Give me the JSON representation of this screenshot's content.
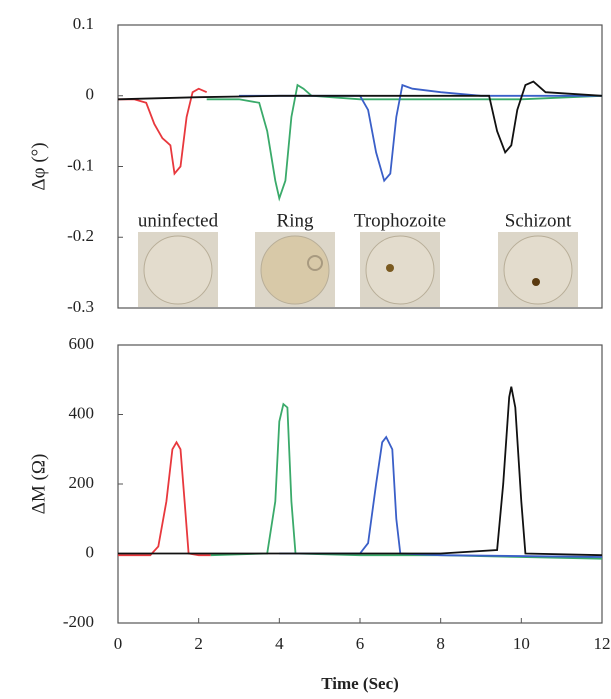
{
  "chart_data": [
    {
      "type": "line",
      "ylabel": "Δφ (°)",
      "xlim": [
        0,
        12
      ],
      "ylim": [
        -0.3,
        0.1
      ],
      "yticks": [
        0.1,
        0,
        -0.1,
        -0.2,
        -0.3
      ],
      "annotations": [
        "uninfected",
        "Ring",
        "Trophozoite",
        "Schizont"
      ],
      "series": [
        {
          "color": "#e8383d",
          "x": [
            0,
            0.4,
            0.7,
            0.9,
            1.1,
            1.2,
            1.3,
            1.4,
            1.55,
            1.7,
            1.85,
            2.0,
            2.2
          ],
          "values": [
            -0.005,
            -0.005,
            -0.01,
            -0.04,
            -0.06,
            -0.065,
            -0.07,
            -0.11,
            -0.1,
            -0.03,
            0.005,
            0.01,
            0.005
          ]
        },
        {
          "color": "#3aaa6a",
          "x": [
            2.2,
            3.0,
            3.5,
            3.7,
            3.9,
            4.0,
            4.15,
            4.3,
            4.45,
            4.6,
            4.8,
            6,
            8,
            10,
            12
          ],
          "values": [
            -0.005,
            -0.005,
            -0.01,
            -0.05,
            -0.12,
            -0.145,
            -0.12,
            -0.03,
            0.015,
            0.01,
            0,
            -0.005,
            -0.005,
            -0.005,
            0
          ]
        },
        {
          "color": "#3a5fc8",
          "x": [
            3,
            5,
            6,
            6.2,
            6.4,
            6.6,
            6.75,
            6.9,
            7.05,
            7.3,
            8,
            9,
            10,
            12
          ],
          "values": [
            0,
            0,
            0,
            -0.02,
            -0.08,
            -0.12,
            -0.11,
            -0.03,
            0.015,
            0.01,
            0.005,
            0,
            0,
            0
          ]
        },
        {
          "color": "#111111",
          "x": [
            0,
            2,
            4,
            6,
            8,
            9.2,
            9.4,
            9.6,
            9.75,
            9.9,
            10.1,
            10.3,
            10.6,
            12
          ],
          "values": [
            -0.005,
            -0.002,
            0,
            0,
            0,
            0,
            -0.05,
            -0.08,
            -0.07,
            -0.02,
            0.015,
            0.02,
            0.005,
            0
          ]
        }
      ]
    },
    {
      "type": "line",
      "ylabel": "ΔM  (Ω)",
      "xlabel": "Time (Sec)",
      "xlim": [
        0,
        12
      ],
      "ylim": [
        -200,
        600
      ],
      "yticks": [
        600,
        400,
        200,
        0,
        -200
      ],
      "xticks": [
        0,
        2,
        4,
        6,
        8,
        10,
        12
      ],
      "series": [
        {
          "color": "#e8383d",
          "x": [
            0,
            0.8,
            1.0,
            1.2,
            1.35,
            1.45,
            1.55,
            1.65,
            1.75,
            2.0,
            2.3
          ],
          "values": [
            -5,
            -5,
            20,
            150,
            300,
            320,
            300,
            150,
            0,
            -5,
            -5
          ]
        },
        {
          "color": "#3aaa6a",
          "x": [
            2.3,
            3.7,
            3.9,
            4.0,
            4.1,
            4.2,
            4.3,
            4.4,
            6,
            8,
            10,
            12
          ],
          "values": [
            -5,
            0,
            150,
            380,
            430,
            420,
            150,
            0,
            -5,
            -5,
            -10,
            -15
          ]
        },
        {
          "color": "#3a5fc8",
          "x": [
            4,
            6,
            6.2,
            6.4,
            6.55,
            6.65,
            6.8,
            6.9,
            7.0,
            8,
            12
          ],
          "values": [
            0,
            0,
            30,
            200,
            320,
            335,
            300,
            100,
            0,
            -5,
            -10
          ]
        },
        {
          "color": "#111111",
          "x": [
            0,
            4,
            8,
            9.4,
            9.55,
            9.7,
            9.75,
            9.85,
            10.0,
            10.1,
            12
          ],
          "values": [
            0,
            0,
            0,
            10,
            200,
            450,
            480,
            420,
            150,
            0,
            -5
          ]
        }
      ]
    }
  ]
}
